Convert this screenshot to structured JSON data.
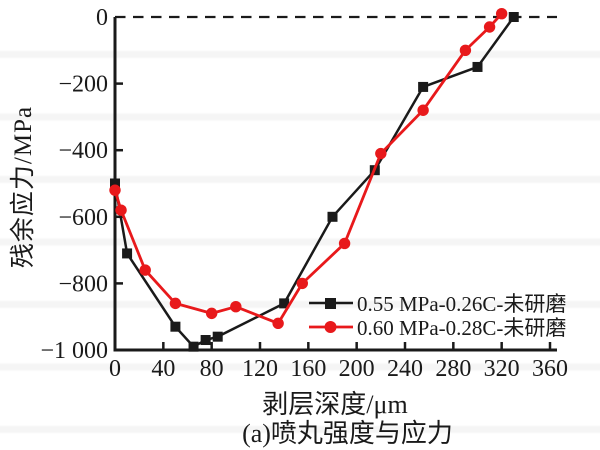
{
  "chart_data": {
    "type": "line",
    "title": "",
    "xlabel": "剥层深度/μm",
    "ylabel": "残余应力/MPa",
    "caption": "(a)喷丸强度与应力",
    "xlim": [
      0,
      360
    ],
    "ylim": [
      -1000,
      0
    ],
    "xticks": [
      0,
      40,
      80,
      120,
      160,
      200,
      240,
      280,
      320,
      360
    ],
    "xtick_labels": [
      "0",
      "40",
      "80",
      "120",
      "160",
      "200",
      "240",
      "280",
      "320",
      "360"
    ],
    "yticks": [
      0,
      -200,
      -400,
      -600,
      -800,
      -1000
    ],
    "ytick_labels": [
      "0",
      "−200",
      "−400",
      "−600",
      "−800",
      "−1 000"
    ],
    "grid": false,
    "zero_reference_line": {
      "y": 0,
      "style": "dashed",
      "color": "#1a1a1a"
    },
    "legend_position": "inside lower right",
    "axis_color": "#1a1a1a",
    "series": [
      {
        "name": "0.55 MPa-0.26C-未研磨",
        "color": "#1a1a1a",
        "marker": "square",
        "x": [
          0,
          10,
          50,
          65,
          75,
          85,
          140,
          180,
          215,
          255,
          300,
          330
        ],
        "y": [
          -500,
          -710,
          -930,
          -990,
          -970,
          -960,
          -860,
          -600,
          -460,
          -210,
          -150,
          0
        ]
      },
      {
        "name": "0.60 MPa-0.28C-未研磨",
        "color": "#e8191b",
        "marker": "circle",
        "x": [
          0,
          5,
          25,
          50,
          80,
          100,
          135,
          155,
          190,
          220,
          255,
          290,
          310,
          320
        ],
        "y": [
          -520,
          -580,
          -760,
          -860,
          -890,
          -870,
          -920,
          -800,
          -680,
          -410,
          -280,
          -100,
          -30,
          10
        ]
      }
    ]
  }
}
